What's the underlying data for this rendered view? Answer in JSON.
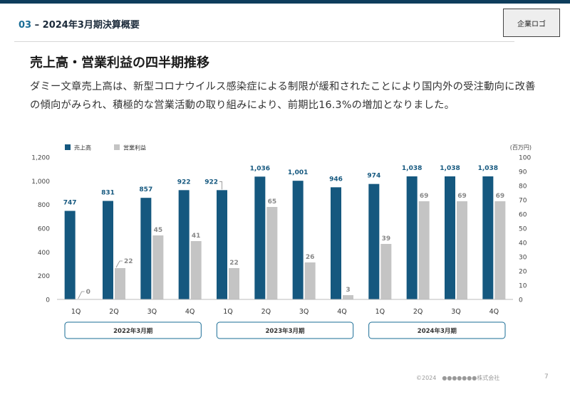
{
  "header": {
    "section_number": "03",
    "section_title": "2024年3月期決算概要",
    "logo_label": "企業ロゴ"
  },
  "page": {
    "heading": "売上高・営業利益の四半期推移",
    "body": "ダミー文章売上高は、新型コロナウイルス感染症による制限が緩和されたことにより国内外の受注動向に改善の傾向がみられ、積極的な営業活動の取り組みにより、前期比16.3%の増加となりました。"
  },
  "chart_data": {
    "type": "bar",
    "title": "",
    "unit_label": "(百万円)",
    "categories": [
      "1Q",
      "2Q",
      "3Q",
      "4Q",
      "1Q",
      "2Q",
      "3Q",
      "4Q",
      "1Q",
      "2Q",
      "3Q",
      "4Q"
    ],
    "periods": [
      {
        "label": "2022年3月期",
        "quarters": 4
      },
      {
        "label": "2023年3月期",
        "quarters": 4
      },
      {
        "label": "2024年3月期",
        "quarters": 4
      }
    ],
    "series": [
      {
        "name": "売上高",
        "axis": "left",
        "color": "#15587f",
        "values": [
          747,
          831,
          857,
          922,
          922,
          1036,
          1001,
          946,
          974,
          1038,
          1038,
          1038
        ],
        "labels": [
          "747",
          "831",
          "857",
          "922",
          "922",
          "1,036",
          "1,001",
          "946",
          "974",
          "1,038",
          "1,038",
          "1,038"
        ]
      },
      {
        "name": "営業利益",
        "axis": "right",
        "color": "#c4c4c4",
        "values": [
          0,
          22,
          45,
          41,
          22,
          65,
          26,
          3,
          39,
          69,
          69,
          69
        ],
        "labels": [
          "0",
          "22",
          "45",
          "41",
          "22",
          "65",
          "26",
          "3",
          "39",
          "69",
          "69",
          "69"
        ]
      }
    ],
    "left_axis": {
      "min": 0,
      "max": 1200,
      "ticks": [
        "0",
        "200",
        "400",
        "600",
        "800",
        "1,000",
        "1,200"
      ]
    },
    "right_axis": {
      "min": 0,
      "max": 100,
      "ticks": [
        "0",
        "10",
        "20",
        "30",
        "40",
        "50",
        "60",
        "70",
        "80",
        "90",
        "100"
      ]
    },
    "legend_position": "top-left",
    "grid": false
  },
  "footer": {
    "copyright": "©2024　●●●●●●●株式会社",
    "page_number": "7"
  }
}
